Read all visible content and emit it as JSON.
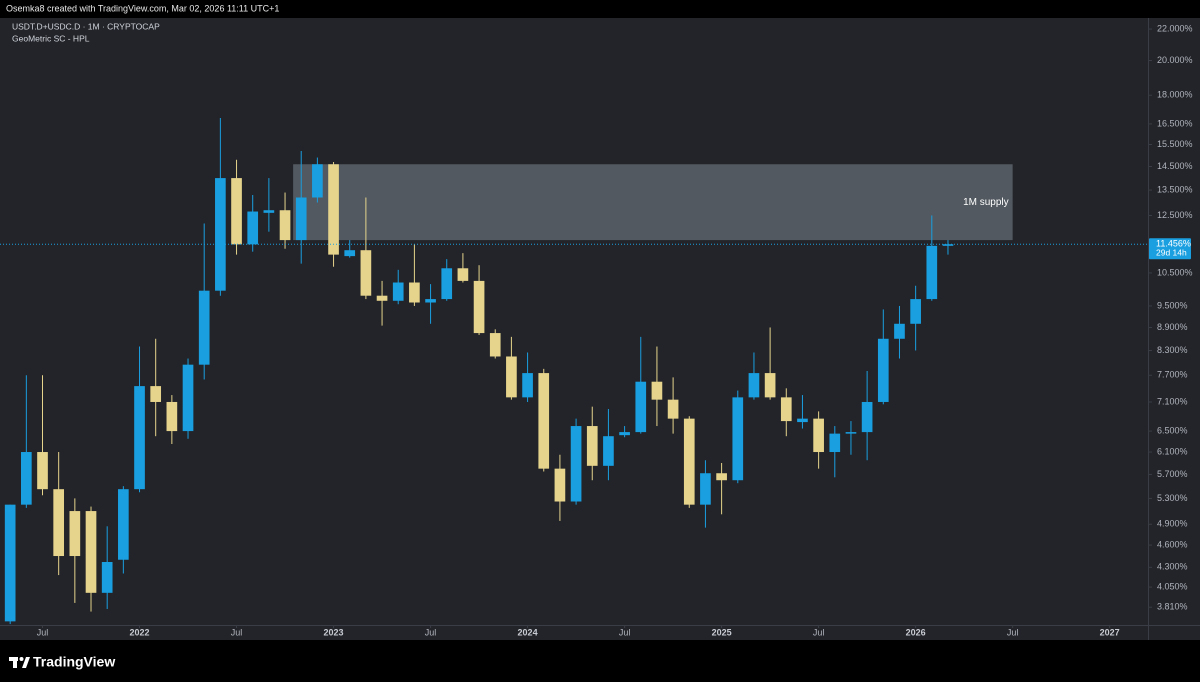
{
  "header": {
    "credit": "Osemka8 created with TradingView.com, Mar 02, 2026 11:11 UTC+1"
  },
  "footer": {
    "brand": "TradingView"
  },
  "chart_data": {
    "type": "candlestick",
    "symbol": "USDT.D+USDC.D · 1M · CRYPTOCAP",
    "indicator": "GeoMetric SC - HPL",
    "up_color": "#1a9fe0",
    "down_color": "#e6d48c",
    "log_scale": true,
    "grid": false,
    "x": [
      "2021-05",
      "2021-06",
      "2021-07",
      "2021-08",
      "2021-09",
      "2021-10",
      "2021-11",
      "2021-12",
      "2022-01",
      "2022-02",
      "2022-03",
      "2022-04",
      "2022-05",
      "2022-06",
      "2022-07",
      "2022-08",
      "2022-09",
      "2022-10",
      "2022-11",
      "2022-12",
      "2023-01",
      "2023-02",
      "2023-03",
      "2023-04",
      "2023-05",
      "2023-06",
      "2023-07",
      "2023-08",
      "2023-09",
      "2023-10",
      "2023-11",
      "2023-12",
      "2024-01",
      "2024-02",
      "2024-03",
      "2024-04",
      "2024-05",
      "2024-06",
      "2024-07",
      "2024-08",
      "2024-09",
      "2024-10",
      "2024-11",
      "2024-12",
      "2025-01",
      "2025-02",
      "2025-03",
      "2025-04",
      "2025-05",
      "2025-06",
      "2025-07",
      "2025-08",
      "2025-09",
      "2025-10",
      "2025-11",
      "2025-12",
      "2026-01",
      "2026-02",
      "2026-03"
    ],
    "open": [
      3.65,
      5.2,
      6.1,
      5.45,
      5.1,
      5.1,
      3.98,
      4.4,
      5.45,
      7.45,
      7.1,
      6.5,
      7.95,
      9.95,
      14.0,
      11.45,
      12.6,
      12.7,
      11.6,
      13.2,
      14.6,
      11.05,
      11.25,
      9.8,
      9.65,
      10.2,
      9.6,
      9.7,
      10.65,
      10.25,
      8.75,
      8.15,
      7.2,
      7.75,
      5.8,
      5.25,
      6.6,
      5.85,
      6.42,
      6.48,
      7.55,
      7.15,
      6.75,
      5.2,
      5.72,
      5.6,
      7.2,
      7.75,
      7.2,
      6.68,
      6.75,
      6.1,
      6.45,
      6.48,
      7.1,
      8.6,
      9.0,
      9.7,
      11.4
    ],
    "high": [
      5.2,
      7.7,
      7.7,
      6.1,
      5.3,
      5.17,
      4.87,
      5.5,
      8.4,
      8.6,
      7.25,
      8.1,
      12.2,
      16.8,
      14.8,
      13.3,
      14.0,
      13.4,
      15.2,
      14.9,
      14.7,
      11.6,
      13.2,
      10.25,
      10.6,
      11.45,
      10.15,
      10.95,
      11.15,
      10.75,
      8.85,
      8.65,
      8.25,
      7.85,
      6.05,
      6.75,
      7.0,
      6.95,
      6.6,
      8.65,
      8.4,
      7.65,
      6.8,
      5.95,
      5.9,
      7.35,
      8.25,
      8.9,
      7.4,
      7.25,
      6.9,
      6.6,
      6.7,
      7.8,
      9.4,
      9.5,
      10.1,
      12.5,
      11.6
    ],
    "low": [
      3.62,
      5.15,
      5.35,
      4.2,
      3.86,
      3.76,
      3.79,
      4.22,
      5.4,
      6.4,
      6.25,
      6.35,
      7.6,
      9.8,
      11.1,
      11.2,
      11.9,
      11.3,
      10.8,
      13.0,
      10.7,
      11.0,
      9.7,
      8.95,
      9.55,
      9.5,
      9.0,
      9.65,
      10.2,
      8.7,
      8.1,
      7.15,
      7.1,
      5.75,
      4.95,
      5.2,
      5.6,
      5.6,
      6.38,
      6.45,
      6.6,
      6.45,
      5.15,
      4.85,
      5.05,
      5.55,
      7.15,
      7.15,
      6.4,
      6.55,
      5.8,
      5.65,
      6.05,
      5.95,
      7.05,
      8.1,
      8.3,
      9.65,
      11.1
    ],
    "close": [
      5.2,
      6.1,
      5.45,
      4.45,
      4.45,
      3.98,
      4.37,
      5.45,
      7.45,
      7.1,
      6.5,
      7.95,
      9.95,
      14.0,
      11.45,
      12.65,
      12.7,
      11.6,
      13.2,
      14.6,
      11.1,
      11.25,
      9.8,
      9.65,
      10.2,
      9.6,
      9.7,
      10.65,
      10.25,
      8.75,
      8.15,
      7.2,
      7.75,
      5.8,
      5.25,
      6.6,
      5.85,
      6.4,
      6.48,
      7.55,
      7.15,
      6.75,
      5.2,
      5.72,
      5.6,
      7.2,
      7.75,
      7.2,
      6.7,
      6.75,
      6.1,
      6.45,
      6.48,
      7.1,
      8.6,
      9.0,
      9.7,
      11.4,
      11.456
    ],
    "xlim": [
      "2021-04",
      "2027-03"
    ],
    "xticks": [
      {
        "value": "2021-07",
        "label": "Jul"
      },
      {
        "value": "2022-01",
        "label": "2022"
      },
      {
        "value": "2022-07",
        "label": "Jul"
      },
      {
        "value": "2023-01",
        "label": "2023"
      },
      {
        "value": "2023-07",
        "label": "Jul"
      },
      {
        "value": "2024-01",
        "label": "2024"
      },
      {
        "value": "2024-07",
        "label": "Jul"
      },
      {
        "value": "2025-01",
        "label": "2025"
      },
      {
        "value": "2025-07",
        "label": "Jul"
      },
      {
        "value": "2026-01",
        "label": "2026"
      },
      {
        "value": "2026-07",
        "label": "Jul"
      },
      {
        "value": "2027-01",
        "label": "2027"
      }
    ],
    "ylim": [
      3.61,
      22.75
    ],
    "yticks": [
      {
        "value": 22,
        "label": "22.000%"
      },
      {
        "value": 20,
        "label": "20.000%"
      },
      {
        "value": 18,
        "label": "18.000%"
      },
      {
        "value": 16.5,
        "label": "16.500%"
      },
      {
        "value": 15.5,
        "label": "15.500%"
      },
      {
        "value": 14.5,
        "label": "14.500%"
      },
      {
        "value": 13.5,
        "label": "13.500%"
      },
      {
        "value": 12.5,
        "label": "12.500%"
      },
      {
        "value": 10.5,
        "label": "10.500%"
      },
      {
        "value": 9.5,
        "label": "9.500%"
      },
      {
        "value": 8.9,
        "label": "8.900%"
      },
      {
        "value": 8.3,
        "label": "8.300%"
      },
      {
        "value": 7.7,
        "label": "7.700%"
      },
      {
        "value": 7.1,
        "label": "7.100%"
      },
      {
        "value": 6.5,
        "label": "6.500%"
      },
      {
        "value": 6.1,
        "label": "6.100%"
      },
      {
        "value": 5.7,
        "label": "5.700%"
      },
      {
        "value": 5.3,
        "label": "5.300%"
      },
      {
        "value": 4.9,
        "label": "4.900%"
      },
      {
        "value": 4.6,
        "label": "4.600%"
      },
      {
        "value": 4.3,
        "label": "4.300%"
      },
      {
        "value": 4.05,
        "label": "4.050%"
      },
      {
        "value": 3.81,
        "label": "3.810%"
      }
    ],
    "last_price": {
      "value": 11.456,
      "label": "11.456%",
      "countdown": "29d 14h"
    },
    "supply_zone": {
      "label": "1M supply",
      "top": 14.6,
      "bottom": 11.6,
      "start": "2022-11",
      "end": "2026-07"
    }
  }
}
